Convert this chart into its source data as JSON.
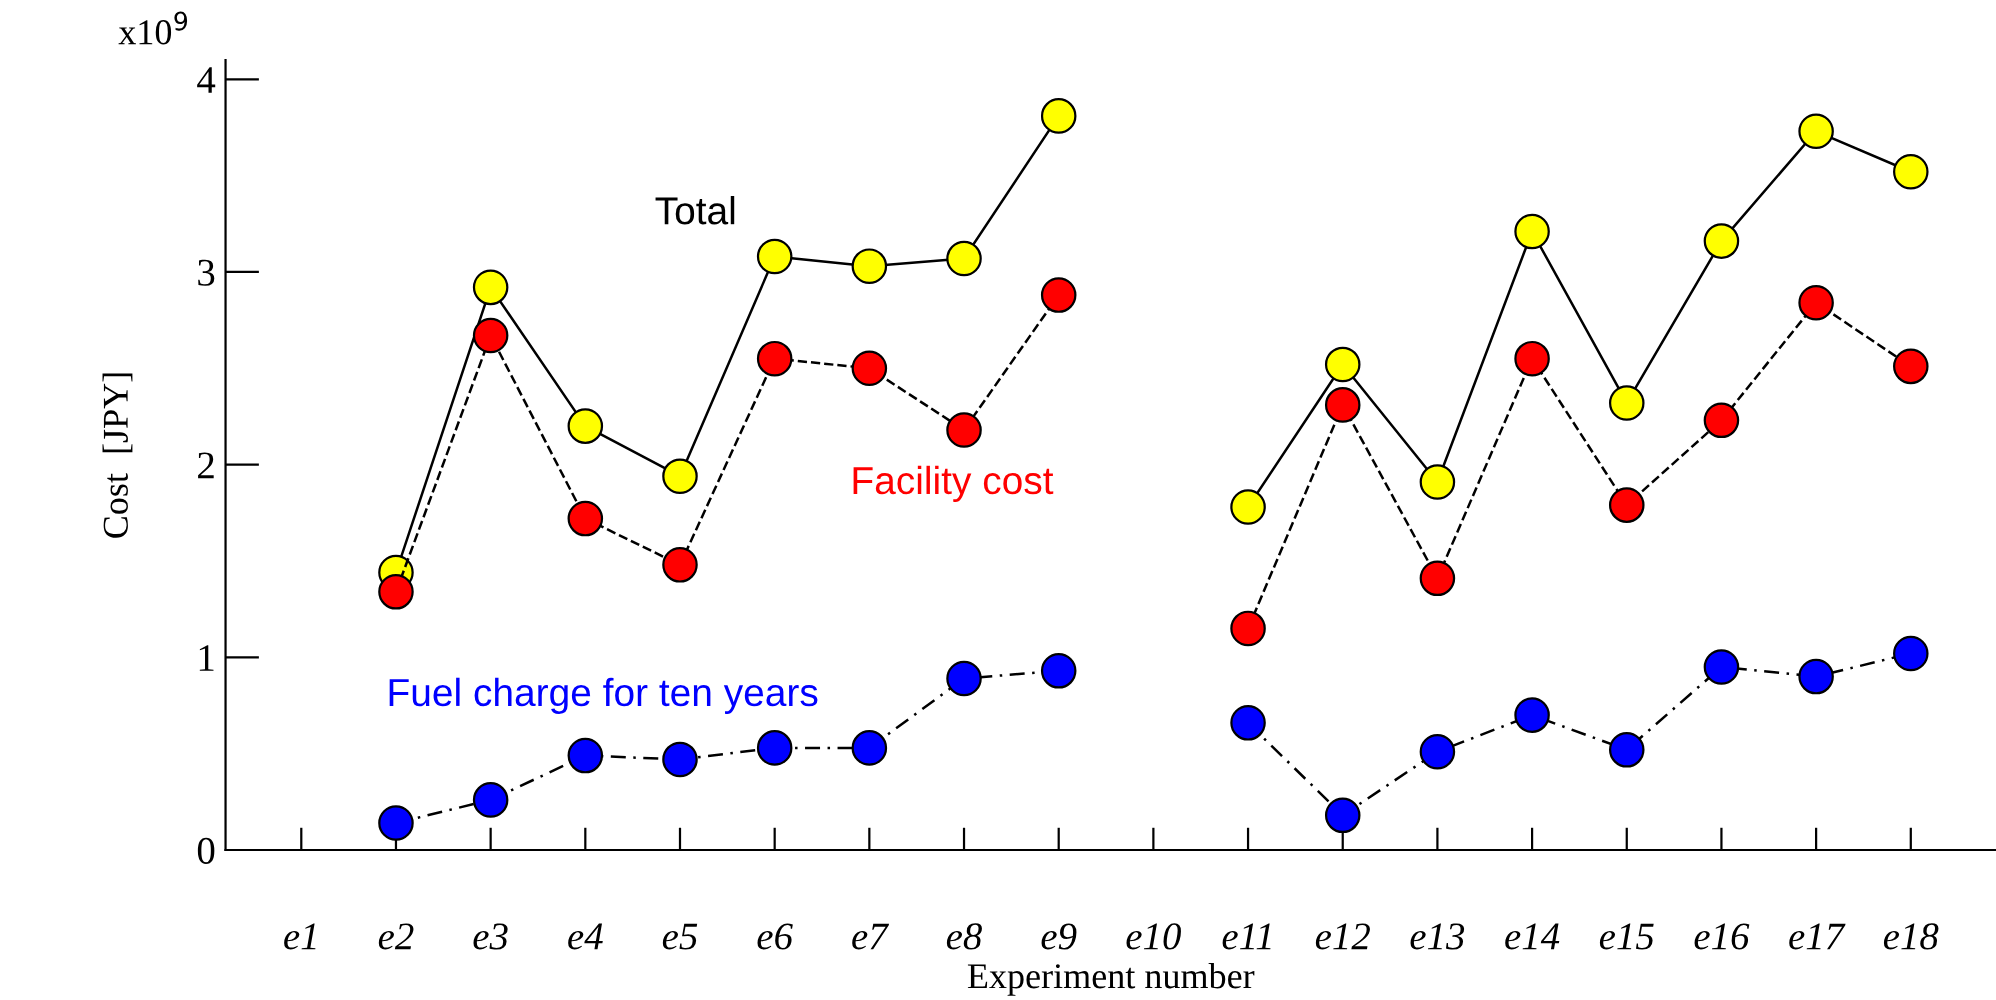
{
  "chart_data": {
    "type": "line",
    "xlabel": "Experiment number",
    "ylabel": "Cost  [JPY]",
    "annotations": [
      "x10$^{9}$"
    ],
    "categories": [
      "e1",
      "e2",
      "e3",
      "e4",
      "e5",
      "e6",
      "e7",
      "e8",
      "e9",
      "e10",
      "e11",
      "e12",
      "e13",
      "e14",
      "e15",
      "e16",
      "e17",
      "e18"
    ],
    "ylim": [
      0,
      4.1
    ],
    "yticks": [
      0,
      1,
      2,
      3,
      4
    ],
    "grid": false,
    "legend": false,
    "marker": "circle",
    "series": [
      {
        "name": "Total",
        "color": "#ffff00",
        "line_style": "solid",
        "values": [
          null,
          1.44,
          2.92,
          2.2,
          1.94,
          3.08,
          3.03,
          3.07,
          3.81,
          null,
          1.78,
          2.52,
          1.91,
          3.21,
          2.32,
          3.16,
          3.73,
          3.52
        ]
      },
      {
        "name": "Facility cost",
        "color": "#ff0000",
        "line_style": "dashed",
        "values": [
          null,
          1.34,
          2.67,
          1.72,
          1.48,
          2.55,
          2.5,
          2.18,
          2.88,
          null,
          1.15,
          2.31,
          1.41,
          2.55,
          1.79,
          2.23,
          2.84,
          2.51
        ]
      },
      {
        "name": "Fuel charge for ten years",
        "color": "#0000ff",
        "line_style": "dotted",
        "values": [
          null,
          0.14,
          0.26,
          0.49,
          0.47,
          0.53,
          0.53,
          0.89,
          0.93,
          null,
          0.66,
          0.18,
          0.51,
          0.7,
          0.52,
          0.95,
          0.9,
          1.02
        ]
      }
    ]
  }
}
